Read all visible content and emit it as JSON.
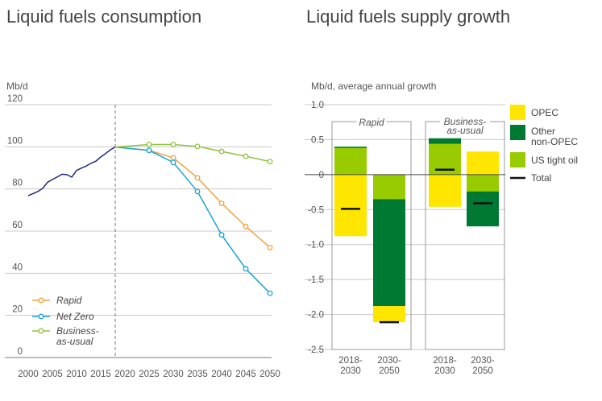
{
  "chart_data": [
    {
      "type": "line",
      "title": "Liquid fuels consumption",
      "ylabel": "Mb/d",
      "ylim": [
        0,
        120
      ],
      "yticks": [
        0,
        20,
        40,
        60,
        80,
        100,
        120
      ],
      "xlim": [
        2000,
        2050
      ],
      "xticks": [
        "2000",
        "2005",
        "2010",
        "2015",
        "2020",
        "2025",
        "2030",
        "2035",
        "2040",
        "2045",
        "2050"
      ],
      "divider_year": 2018,
      "grid": true,
      "legend_position": "bottom-left",
      "history": {
        "color": "#1f2a7a",
        "x": [
          2000,
          2001,
          2002,
          2003,
          2004,
          2005,
          2006,
          2007,
          2008,
          2009,
          2010,
          2011,
          2012,
          2013,
          2014,
          2015,
          2016,
          2017,
          2018
        ],
        "y": [
          76.8,
          77.8,
          78.8,
          80.3,
          83.2,
          84.5,
          85.7,
          87.0,
          86.8,
          85.6,
          88.8,
          89.9,
          90.9,
          92.2,
          93.2,
          95.2,
          96.8,
          98.6,
          99.9
        ]
      },
      "series": [
        {
          "name": "Rapid",
          "color": "#f0a33a",
          "italic": true,
          "x": [
            2018,
            2025,
            2030,
            2035,
            2040,
            2045,
            2050
          ],
          "y": [
            99.9,
            98.3,
            94.8,
            85.3,
            73.2,
            62.2,
            52.2
          ]
        },
        {
          "name": "Net Zero",
          "color": "#1aa4d8",
          "italic": true,
          "x": [
            2018,
            2025,
            2030,
            2035,
            2040,
            2045,
            2050
          ],
          "y": [
            99.9,
            98.3,
            92.6,
            78.8,
            58.2,
            42.1,
            30.5
          ]
        },
        {
          "name": "Business-as-usual",
          "name_lines": [
            "Business-",
            "as-usual"
          ],
          "color": "#8fc43b",
          "italic": true,
          "x": [
            2018,
            2025,
            2030,
            2035,
            2040,
            2045,
            2050
          ],
          "y": [
            99.9,
            101.1,
            101.1,
            100.2,
            97.8,
            95.5,
            93.0
          ]
        }
      ]
    },
    {
      "type": "bar",
      "subtype": "stacked",
      "title": "Liquid fuels supply growth",
      "ylabel": "Mb/d, average annual growth",
      "ylim": [
        -2.5,
        1.0
      ],
      "yticks": [
        "1.0",
        "0.5",
        "0",
        "-0.5",
        "-1.0",
        "-1.5",
        "-2.0",
        "-2.5"
      ],
      "legend_position": "right",
      "legend": [
        {
          "name": "OPEC",
          "color": "#ffe600",
          "kind": "box"
        },
        {
          "name": "Other non-OPEC",
          "name_lines": [
            "Other",
            "non-OPEC"
          ],
          "color": "#007a33",
          "kind": "box"
        },
        {
          "name": "US tight oil",
          "color": "#99cc00",
          "kind": "box"
        },
        {
          "name": "Total",
          "color": "#111111",
          "kind": "line"
        }
      ],
      "panels": [
        {
          "name": "Rapid",
          "name_lines": [
            "Rapid"
          ]
        },
        {
          "name": "Business-as-usual",
          "name_lines": [
            "Business-",
            "as-usual"
          ]
        }
      ],
      "categories": [
        {
          "panel": 0,
          "label_lines": [
            "2018-",
            "2030"
          ],
          "OPEC": -0.88,
          "Other non-OPEC": 0.02,
          "US tight oil": 0.38,
          "Total": -0.49
        },
        {
          "panel": 0,
          "label_lines": [
            "2030-",
            "2050"
          ],
          "OPEC": -0.23,
          "Other non-OPEC": -1.53,
          "US tight oil": -0.35,
          "Total": -2.11
        },
        {
          "panel": 1,
          "label_lines": [
            "2018-",
            "2030"
          ],
          "OPEC": -0.46,
          "Other non-OPEC": 0.08,
          "US tight oil": 0.44,
          "Total": 0.07
        },
        {
          "panel": 1,
          "label_lines": [
            "2030-",
            "2050"
          ],
          "OPEC": 0.33,
          "Other non-OPEC": -0.5,
          "US tight oil": -0.24,
          "Total": -0.41
        }
      ]
    }
  ]
}
